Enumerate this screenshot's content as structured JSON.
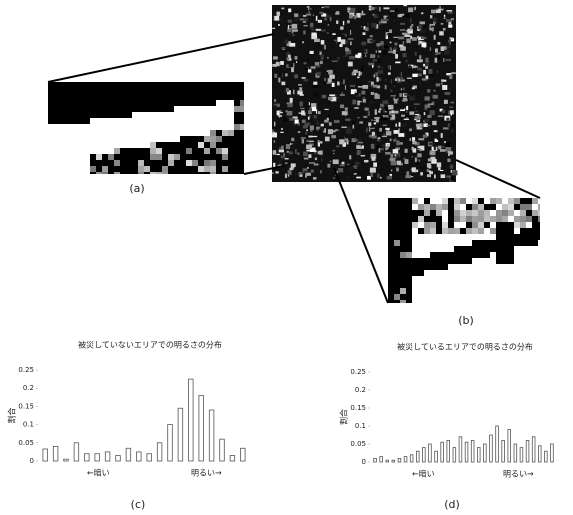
{
  "figure_labels": [
    "(a)",
    "(b)",
    "(c)",
    "(d)"
  ],
  "chart_data": [
    {
      "type": "bar",
      "title": "被災していないエリアでの明るさの分布",
      "ylabel": "割合",
      "annotations": [
        "←暗い",
        "明るい→"
      ],
      "values": [
        0.033,
        0.04,
        0.005,
        0.05,
        0.02,
        0.02,
        0.025,
        0.015,
        0.035,
        0.025,
        0.02,
        0.05,
        0.1,
        0.145,
        0.225,
        0.18,
        0.14,
        0.06,
        0.015,
        0.035
      ],
      "color": "#ffffff",
      "ylim": [
        0,
        0.25
      ],
      "yticks": [
        0,
        0.05,
        0.1,
        0.15,
        0.2,
        0.25
      ]
    },
    {
      "type": "bar",
      "title": "被災しているエリアでの明るさの分布",
      "ylabel": "割合",
      "annotations": [
        "←暗い",
        "明るい→"
      ],
      "values": [
        0.01,
        0.015,
        0.005,
        0.005,
        0.01,
        0.015,
        0.02,
        0.03,
        0.04,
        0.05,
        0.03,
        0.055,
        0.06,
        0.04,
        0.07,
        0.055,
        0.06,
        0.04,
        0.05,
        0.075,
        0.1,
        0.06,
        0.09,
        0.05,
        0.04,
        0.06,
        0.07,
        0.045,
        0.03,
        0.05
      ],
      "color": "#ffffff",
      "ylim": [
        0,
        0.25
      ],
      "yticks": [
        0,
        0.05,
        0.1,
        0.15,
        0.2,
        0.25
      ]
    }
  ]
}
